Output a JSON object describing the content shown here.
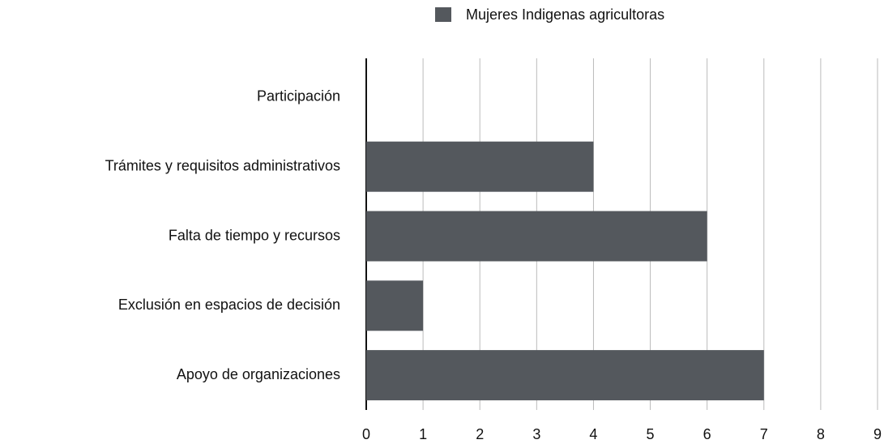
{
  "chart_data": {
    "type": "bar",
    "orientation": "horizontal",
    "categories": [
      "Participación",
      "Trámites y requisitos administrativos",
      "Falta de tiempo y recursos",
      "Exclusión en espacios de decisión",
      "Apoyo de organizaciones"
    ],
    "series": [
      {
        "name": "Mujeres Indigenas agricultoras",
        "color": "#54585d",
        "values": [
          0,
          4,
          6,
          1,
          7
        ]
      }
    ],
    "xlim": [
      0,
      9
    ],
    "xticks": [
      0,
      1,
      2,
      3,
      4,
      5,
      6,
      7,
      8,
      9
    ],
    "grid": true,
    "legend": "top"
  }
}
